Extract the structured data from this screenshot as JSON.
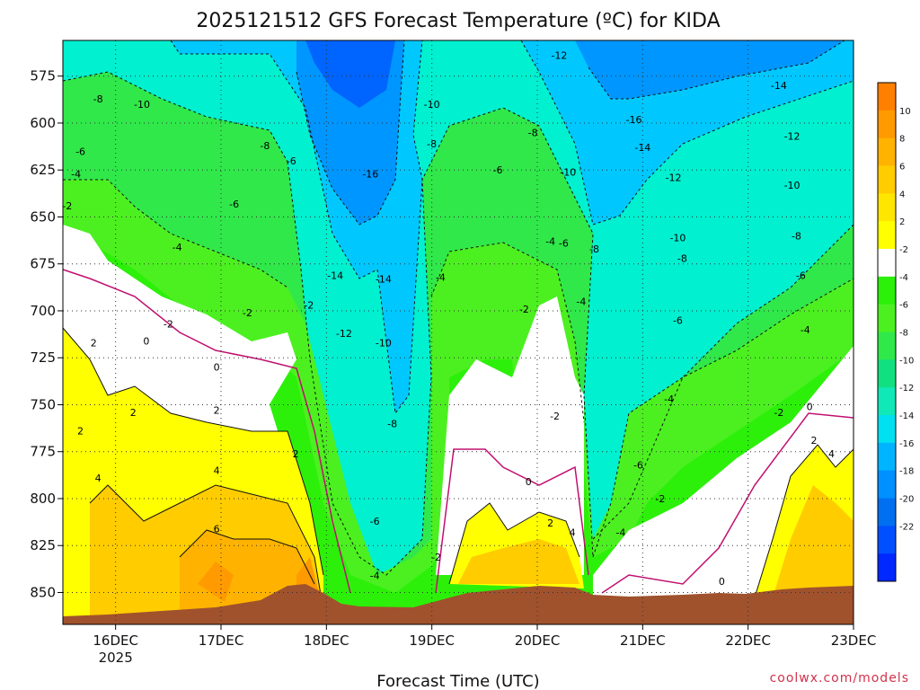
{
  "title": "2025121512 GFS Forecast Temperature (ºC) for KIDA",
  "xlabel": "Forecast Time (UTC)",
  "credit": "coolwx.com/models",
  "chart_data": {
    "type": "heatmap",
    "title": "2025121512 GFS Forecast Temperature (ºC) for KIDA",
    "xlabel": "Forecast Time (UTC)",
    "ylabel": "",
    "x_ticks": [
      "16DEC\n2025",
      "17DEC",
      "18DEC",
      "19DEC",
      "20DEC",
      "21DEC",
      "22DEC",
      "23DEC"
    ],
    "x_range": [
      "2025-12-15 12Z",
      "2025-12-23 00Z"
    ],
    "y_ticks": [
      575,
      600,
      625,
      650,
      675,
      700,
      725,
      750,
      775,
      800,
      825,
      850
    ],
    "y_axis": "pressure (hPa), inverted",
    "grid": true,
    "colorbar": {
      "ticks": [
        10,
        8,
        6,
        4,
        2,
        -2,
        -4,
        -6,
        -8,
        -10,
        -12,
        -14,
        -16,
        -18,
        -20,
        -22
      ],
      "colors": [
        "#ff7f00",
        "#ff9a00",
        "#ffb300",
        "#ffcc00",
        "#ffe600",
        "#ffff00",
        "#ffffff",
        "#2cf00a",
        "#4cf020",
        "#30e84a",
        "#10e080",
        "#10e8b8",
        "#00e0f0",
        "#00b4ff",
        "#0090ff",
        "#0070f0",
        "#0050ff",
        "#0028ff"
      ]
    },
    "contour_labels": [
      {
        "t": "2025-12-15 20Z",
        "p": 587,
        "v": -8
      },
      {
        "t": "2025-12-16 06Z",
        "p": 590,
        "v": -10
      },
      {
        "t": "2025-12-15 16Z",
        "p": 615,
        "v": -6
      },
      {
        "t": "2025-12-15 15Z",
        "p": 627,
        "v": -4
      },
      {
        "t": "2025-12-15 13Z",
        "p": 644,
        "v": -2
      },
      {
        "t": "2025-12-16 14Z",
        "p": 666,
        "v": -4
      },
      {
        "t": "2025-12-17 03Z",
        "p": 643,
        "v": -6
      },
      {
        "t": "2025-12-17 10Z",
        "p": 612,
        "v": -8
      },
      {
        "t": "2025-12-17 16Z",
        "p": 620,
        "v": -6
      },
      {
        "t": "2025-12-17 20Z",
        "p": 697,
        "v": -2
      },
      {
        "t": "2025-12-17 06Z",
        "p": 701,
        "v": -2
      },
      {
        "t": "2025-12-16 12Z",
        "p": 707,
        "v": -2
      },
      {
        "t": "2025-12-16 07Z",
        "p": 716,
        "v": 0
      },
      {
        "t": "2025-12-16 23Z",
        "p": 730,
        "v": 0
      },
      {
        "t": "2025-12-15 19Z",
        "p": 717,
        "v": 2
      },
      {
        "t": "2025-12-15 16Z",
        "p": 764,
        "v": 2
      },
      {
        "t": "2025-12-16 04Z",
        "p": 754,
        "v": 2
      },
      {
        "t": "2025-12-16 23Z",
        "p": 753,
        "v": 2
      },
      {
        "t": "2025-12-17 17Z",
        "p": 776,
        "v": 2
      },
      {
        "t": "2025-12-15 20Z",
        "p": 789,
        "v": 4
      },
      {
        "t": "2025-12-16 23Z",
        "p": 785,
        "v": 4
      },
      {
        "t": "2025-12-16 23Z",
        "p": 816,
        "v": 6
      },
      {
        "t": "2025-12-18 02Z",
        "p": 681,
        "v": -14
      },
      {
        "t": "2025-12-18 04Z",
        "p": 712,
        "v": -12
      },
      {
        "t": "2025-12-18 13Z",
        "p": 683,
        "v": -14
      },
      {
        "t": "2025-12-18 13Z",
        "p": 717,
        "v": -10
      },
      {
        "t": "2025-12-18 10Z",
        "p": 627,
        "v": -16
      },
      {
        "t": "2025-12-18 15Z",
        "p": 760,
        "v": -8
      },
      {
        "t": "2025-12-18 11Z",
        "p": 812,
        "v": -6
      },
      {
        "t": "2025-12-18 11Z",
        "p": 841,
        "v": -4
      },
      {
        "t": "2025-12-19 01Z",
        "p": 831,
        "v": -2
      },
      {
        "t": "2025-12-19 00Z",
        "p": 611,
        "v": -8
      },
      {
        "t": "2025-12-19 00Z",
        "p": 590,
        "v": -10
      },
      {
        "t": "2025-12-19 15Z",
        "p": 625,
        "v": -6
      },
      {
        "t": "2025-12-19 23Z",
        "p": 605,
        "v": -8
      },
      {
        "t": "2025-12-20 03Z",
        "p": 663,
        "v": -4
      },
      {
        "t": "2025-12-20 06Z",
        "p": 664,
        "v": -6
      },
      {
        "t": "2025-12-20 13Z",
        "p": 667,
        "v": -8
      },
      {
        "t": "2025-12-20 10Z",
        "p": 695,
        "v": -4
      },
      {
        "t": "2025-12-19 21Z",
        "p": 699,
        "v": -2
      },
      {
        "t": "2025-12-19 02Z",
        "p": 682,
        "v": -4
      },
      {
        "t": "2025-12-20 04Z",
        "p": 756,
        "v": -2
      },
      {
        "t": "2025-12-19 22Z",
        "p": 791,
        "v": 0
      },
      {
        "t": "2025-12-20 03Z",
        "p": 813,
        "v": 2
      },
      {
        "t": "2025-12-20 08Z",
        "p": 818,
        "v": 4
      },
      {
        "t": "2025-12-20 07Z",
        "p": 626,
        "v": -10
      },
      {
        "t": "2025-12-20 05Z",
        "p": 564,
        "v": -12
      },
      {
        "t": "2025-12-20 22Z",
        "p": 598,
        "v": -16
      },
      {
        "t": "2025-12-21 00Z",
        "p": 613,
        "v": -14
      },
      {
        "t": "2025-12-21 07Z",
        "p": 629,
        "v": -12
      },
      {
        "t": "2025-12-21 08Z",
        "p": 661,
        "v": -10
      },
      {
        "t": "2025-12-21 09Z",
        "p": 672,
        "v": -8
      },
      {
        "t": "2025-12-21 08Z",
        "p": 705,
        "v": -6
      },
      {
        "t": "2025-12-21 06Z",
        "p": 747,
        "v": -4
      },
      {
        "t": "2025-12-20 23Z",
        "p": 782,
        "v": -6
      },
      {
        "t": "2025-12-20 19Z",
        "p": 818,
        "v": -4
      },
      {
        "t": "2025-12-21 04Z",
        "p": 800,
        "v": -2
      },
      {
        "t": "2025-12-21 18Z",
        "p": 844,
        "v": 0
      },
      {
        "t": "2025-12-22 07Z",
        "p": 580,
        "v": -14
      },
      {
        "t": "2025-12-22 10Z",
        "p": 607,
        "v": -12
      },
      {
        "t": "2025-12-22 10Z",
        "p": 633,
        "v": -10
      },
      {
        "t": "2025-12-22 11Z",
        "p": 660,
        "v": -8
      },
      {
        "t": "2025-12-22 12Z",
        "p": 681,
        "v": -6
      },
      {
        "t": "2025-12-22 13Z",
        "p": 710,
        "v": -4
      },
      {
        "t": "2025-12-22 07Z",
        "p": 754,
        "v": -2
      },
      {
        "t": "2025-12-22 14Z",
        "p": 751,
        "v": 0
      },
      {
        "t": "2025-12-22 15Z",
        "p": 769,
        "v": 2
      },
      {
        "t": "2025-12-22 19Z",
        "p": 776,
        "v": 4
      }
    ]
  }
}
